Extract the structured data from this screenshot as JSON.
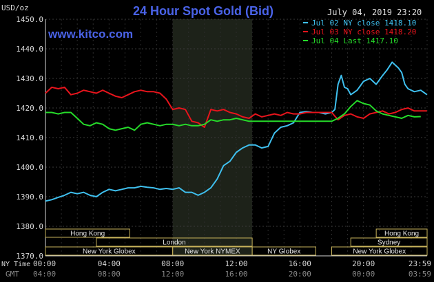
{
  "chart_data": {
    "type": "line",
    "title": "24 Hour Spot Gold (Bid)",
    "ylabel": "USD/oz",
    "ylim": [
      1370,
      1450
    ],
    "yticks": [
      "1450.0",
      "1440.0",
      "1430.0",
      "1420.0",
      "1410.0",
      "1400.0",
      "1390.0",
      "1380.0",
      "1370.0"
    ],
    "xticks_ny": [
      "00:00",
      "04:00",
      "08:00",
      "12:00",
      "16:00",
      "20:00",
      "23:59"
    ],
    "xticks_gmt": [
      "04:00",
      "08:00",
      "12:00",
      "16:00",
      "20:00",
      "00:00",
      "03:59"
    ],
    "x_row_labels": {
      "ny": "NY Time",
      "gmt": "GMT"
    },
    "website": "www.kitco.com",
    "timestamp": "July 04, 2019 23:20",
    "grid": true,
    "legend_position": "top-right",
    "shaded_region": [
      8.0,
      13.0
    ],
    "series": [
      {
        "name": "Jul 02 NY close 1418.10",
        "color": "#3fc0ef",
        "x": [
          0,
          0.4,
          0.8,
          1.2,
          1.6,
          2.0,
          2.4,
          2.8,
          3.2,
          3.6,
          4.0,
          4.4,
          4.8,
          5.2,
          5.6,
          6.0,
          6.4,
          6.8,
          7.2,
          7.6,
          8.0,
          8.4,
          8.8,
          9.2,
          9.6,
          10.0,
          10.4,
          10.8,
          11.2,
          11.6,
          12.0,
          12.4,
          12.8,
          13.2,
          13.6,
          14.0,
          14.4,
          14.8,
          15.2,
          15.6,
          16.0,
          16.4,
          16.8,
          17.2,
          17.6,
          18.0,
          18.2,
          18.4,
          18.6,
          18.8,
          19.0,
          19.2,
          19.6,
          20.0,
          20.4,
          20.8,
          21.2,
          21.5,
          21.8,
          22.0,
          22.2,
          22.4,
          22.6,
          22.8,
          23.2,
          23.6,
          23.99
        ],
        "values": [
          1388.5,
          1389.0,
          1389.8,
          1390.5,
          1391.5,
          1391.0,
          1391.5,
          1390.5,
          1390.0,
          1391.5,
          1392.5,
          1392.0,
          1392.5,
          1393.0,
          1393.0,
          1393.5,
          1393.2,
          1393.0,
          1392.5,
          1392.8,
          1392.5,
          1393.0,
          1391.5,
          1391.5,
          1390.5,
          1391.5,
          1393.0,
          1396.0,
          1400.5,
          1402.0,
          1405.0,
          1406.5,
          1407.5,
          1407.5,
          1406.5,
          1407.0,
          1411.5,
          1413.5,
          1414.0,
          1415.0,
          1418.5,
          1418.8,
          1418.5,
          1418.5,
          1418.0,
          1418.5,
          1419.5,
          1428.0,
          1431.0,
          1427.0,
          1426.5,
          1424.5,
          1426.0,
          1429.0,
          1430.0,
          1428.0,
          1431.0,
          1433.0,
          1435.5,
          1434.5,
          1433.5,
          1432.0,
          1428.0,
          1426.5,
          1425.5,
          1426.0,
          1424.5
        ]
      },
      {
        "name": "Jul 03 NY close 1418.20",
        "color": "#e8141c",
        "x": [
          0,
          0.4,
          0.8,
          1.2,
          1.6,
          2.0,
          2.4,
          2.8,
          3.2,
          3.6,
          4.0,
          4.4,
          4.8,
          5.2,
          5.6,
          6.0,
          6.4,
          6.8,
          7.2,
          7.6,
          8.0,
          8.4,
          8.8,
          9.2,
          9.6,
          10.0,
          10.4,
          10.8,
          11.2,
          11.6,
          12.0,
          12.4,
          12.8,
          13.2,
          13.6,
          14.0,
          14.4,
          14.8,
          15.2,
          15.6,
          16.0,
          16.4,
          16.8,
          17.2,
          17.6,
          18.0,
          18.4,
          18.8,
          19.2,
          19.6,
          20.0,
          20.4,
          20.8,
          21.2,
          21.6,
          22.0,
          22.4,
          22.8,
          23.2,
          23.6,
          23.99
        ],
        "values": [
          1425.0,
          1427.0,
          1426.5,
          1427.0,
          1424.5,
          1425.0,
          1426.0,
          1425.5,
          1425.0,
          1426.0,
          1425.0,
          1424.0,
          1423.5,
          1424.5,
          1425.5,
          1426.0,
          1425.5,
          1425.5,
          1425.0,
          1423.0,
          1419.5,
          1420.0,
          1419.5,
          1415.5,
          1415.0,
          1413.5,
          1419.5,
          1419.0,
          1419.5,
          1418.5,
          1418.0,
          1417.0,
          1416.5,
          1418.0,
          1417.0,
          1417.5,
          1418.0,
          1417.5,
          1418.5,
          1418.0,
          1418.0,
          1418.5,
          1418.5,
          1418.5,
          1418.5,
          1418.5,
          1416.0,
          1417.5,
          1418.0,
          1417.0,
          1416.5,
          1418.0,
          1418.5,
          1419.0,
          1418.0,
          1418.5,
          1419.5,
          1420.0,
          1419.0,
          1419.0,
          1419.0
        ]
      },
      {
        "name": "Jul 04 Last 1417.10",
        "color": "#26dc2a",
        "x": [
          0,
          0.4,
          0.8,
          1.2,
          1.6,
          2.0,
          2.4,
          2.8,
          3.2,
          3.6,
          4.0,
          4.4,
          4.8,
          5.2,
          5.6,
          6.0,
          6.4,
          6.8,
          7.2,
          7.6,
          8.0,
          8.4,
          8.8,
          9.2,
          9.6,
          10.0,
          10.4,
          10.8,
          11.2,
          11.6,
          12.0,
          12.4,
          12.8,
          13.2,
          13.6,
          14.0,
          14.4,
          14.8,
          15.2,
          15.6,
          16.0,
          16.4,
          16.8,
          17.2,
          17.6,
          18.0,
          18.4,
          18.8,
          19.2,
          19.6,
          20.0,
          20.4,
          20.8,
          21.2,
          21.6,
          22.0,
          22.4,
          22.8,
          23.2,
          23.6
        ],
        "values": [
          1418.5,
          1418.5,
          1418.0,
          1418.5,
          1418.5,
          1416.5,
          1414.5,
          1414.0,
          1415.0,
          1414.5,
          1413.0,
          1412.5,
          1413.0,
          1413.5,
          1412.5,
          1414.5,
          1415.0,
          1414.5,
          1414.0,
          1414.5,
          1414.5,
          1414.0,
          1414.5,
          1414.0,
          1414.0,
          1414.5,
          1416.0,
          1415.5,
          1416.0,
          1416.0,
          1416.5,
          1416.0,
          1415.5,
          1415.5,
          1415.5,
          1415.5,
          1415.5,
          1415.5,
          1415.5,
          1415.5,
          1415.5,
          1415.5,
          1415.5,
          1415.5,
          1415.5,
          1415.5,
          1416.5,
          1418.0,
          1420.5,
          1422.5,
          1421.5,
          1421.0,
          1419.0,
          1418.0,
          1417.5,
          1417.0,
          1416.5,
          1417.5,
          1417.0,
          1417.1
        ]
      }
    ],
    "sessions": [
      {
        "label": "Hong Kong",
        "start": 0,
        "end": 5.3,
        "row": 0
      },
      {
        "label": "Hong Kong",
        "start": 20.8,
        "end": 24,
        "row": 0
      },
      {
        "label": "London",
        "start": 3.2,
        "end": 13.0,
        "row": 1
      },
      {
        "label": "Sydney",
        "start": 19.2,
        "end": 24,
        "row": 1
      },
      {
        "label": "New York Globex",
        "start": 0,
        "end": 8.0,
        "row": 2
      },
      {
        "label": "New York NYMEX",
        "start": 8.0,
        "end": 13.0,
        "row": 2
      },
      {
        "label": "NY Globex",
        "start": 13.0,
        "end": 17.0,
        "row": 2
      },
      {
        "label": "New York Globex",
        "start": 18.0,
        "end": 24,
        "row": 2
      }
    ]
  }
}
